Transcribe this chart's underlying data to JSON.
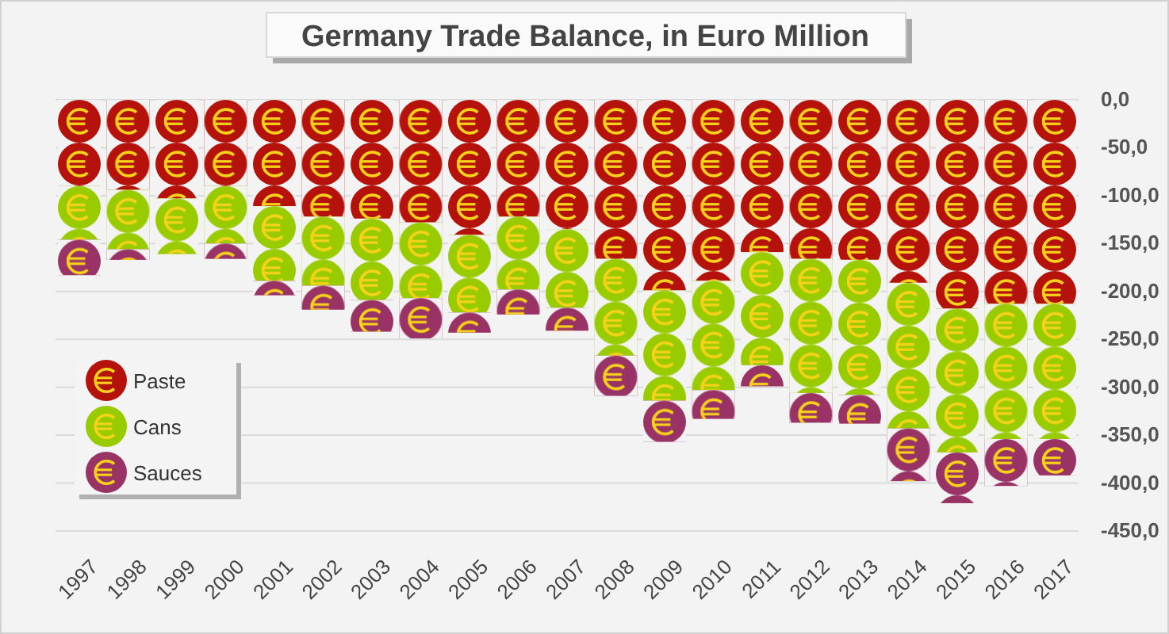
{
  "chart_data": {
    "type": "bar",
    "title": "Germany Trade Balance, in Euro Million",
    "stacked": true,
    "categories": [
      "1997",
      "1998",
      "1999",
      "2000",
      "2001",
      "2002",
      "2003",
      "2004",
      "2005",
      "2006",
      "2007",
      "2008",
      "2009",
      "2010",
      "2011",
      "2012",
      "2013",
      "2014",
      "2015",
      "2016",
      "2017"
    ],
    "series": [
      {
        "name": "Paste",
        "color": "#b5120c",
        "values": [
          -90,
          -94,
          -103,
          -90,
          -111,
          -122,
          -124,
          -128,
          -141,
          -122,
          -135,
          -166,
          -199,
          -189,
          -159,
          -166,
          -167,
          -191,
          -218,
          -213,
          -213
        ]
      },
      {
        "name": "Cans",
        "color": "#99cc00",
        "values": [
          -56,
          -62,
          -58,
          -60,
          -78,
          -72,
          -85,
          -79,
          -81,
          -76,
          -82,
          -101,
          -115,
          -114,
          -118,
          -140,
          -141,
          -152,
          -150,
          -141,
          -141
        ]
      },
      {
        "name": "Sauces",
        "color": "#993366",
        "values": [
          -37,
          -11,
          0,
          -16,
          -15,
          -25,
          -33,
          -42,
          -21,
          -26,
          -24,
          -42,
          -43,
          -30,
          -22,
          -31,
          -30,
          -55,
          -53,
          -49,
          -38
        ]
      }
    ],
    "ylim": [
      -450,
      0
    ],
    "yticks": [
      {
        "value": 0,
        "label": "0,0"
      },
      {
        "value": -50,
        "label": "-50,0"
      },
      {
        "value": -100,
        "label": "-100,0"
      },
      {
        "value": -150,
        "label": "-150,0"
      },
      {
        "value": -200,
        "label": "-200,0"
      },
      {
        "value": -250,
        "label": "-250,0"
      },
      {
        "value": -300,
        "label": "-300,0"
      },
      {
        "value": -350,
        "label": "-350,0"
      },
      {
        "value": -400,
        "label": "-400,0"
      },
      {
        "value": -450,
        "label": "-450,0"
      }
    ],
    "grid": "y",
    "legend": "bottom left"
  }
}
